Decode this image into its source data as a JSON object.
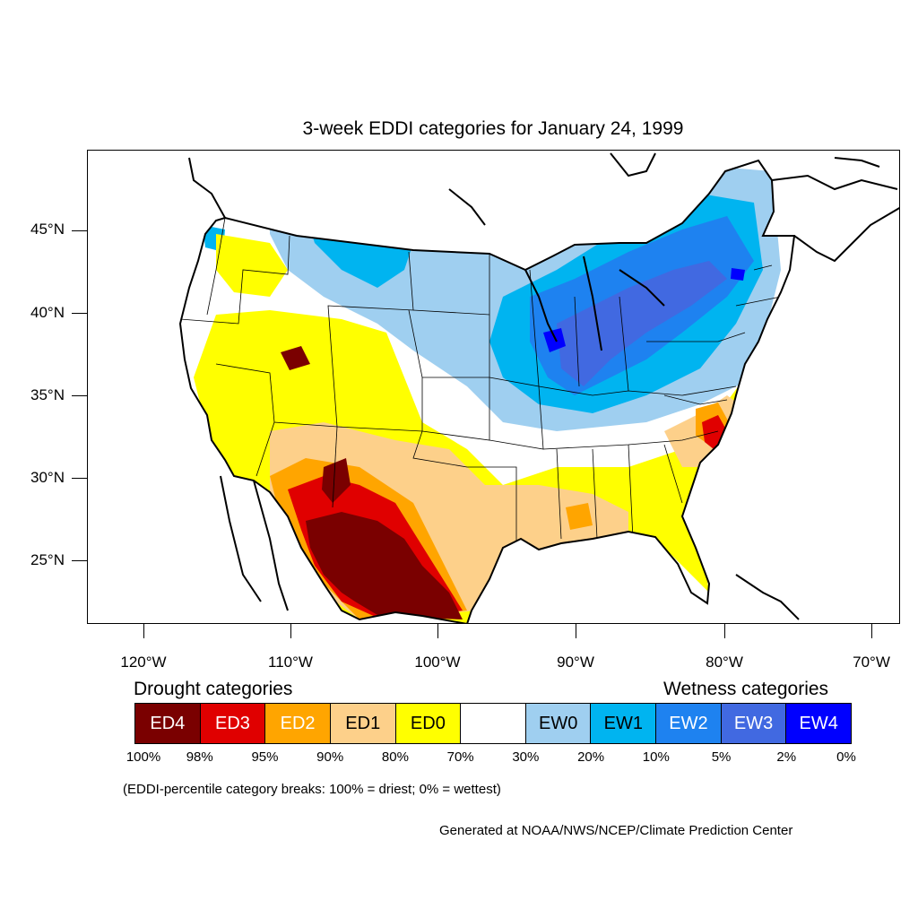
{
  "title": "3-week EDDI categories for January 24, 1999",
  "latitude_labels": [
    "45°N",
    "40°N",
    "35°N",
    "30°N",
    "25°N"
  ],
  "longitude_labels": [
    "120°W",
    "110°W",
    "100°W",
    "90°W",
    "80°W",
    "70°W"
  ],
  "legend": {
    "drought_heading": "Drought categories",
    "wetness_heading": "Wetness categories",
    "categories": [
      {
        "label": "ED4",
        "color": "#7a0000",
        "text_color": "#ffffff"
      },
      {
        "label": "ED3",
        "color": "#e00000",
        "text_color": "#ffffff"
      },
      {
        "label": "ED2",
        "color": "#ffa500",
        "text_color": "#ffffff"
      },
      {
        "label": "ED1",
        "color": "#fdd08a",
        "text_color": "#000000"
      },
      {
        "label": "ED0",
        "color": "#ffff00",
        "text_color": "#000000"
      },
      {
        "label": "",
        "color": "#ffffff",
        "text_color": "#000000"
      },
      {
        "label": "EW0",
        "color": "#9fcff0",
        "text_color": "#000000"
      },
      {
        "label": "EW1",
        "color": "#00b4f0",
        "text_color": "#000000"
      },
      {
        "label": "EW2",
        "color": "#1e82f0",
        "text_color": "#ffffff"
      },
      {
        "label": "EW3",
        "color": "#4169e1",
        "text_color": "#ffffff"
      },
      {
        "label": "EW4",
        "color": "#0000ff",
        "text_color": "#ffffff"
      }
    ],
    "percentiles": [
      "100%",
      "98%",
      "95%",
      "90%",
      "80%",
      "70%",
      "30%",
      "20%",
      "10%",
      "5%",
      "2%",
      "0%"
    ],
    "breaks_note": "(EDDI-percentile category breaks: 100% = driest; 0% = wettest)"
  },
  "credit": "Generated at NOAA/NWS/NCEP/Climate Prediction Center"
}
